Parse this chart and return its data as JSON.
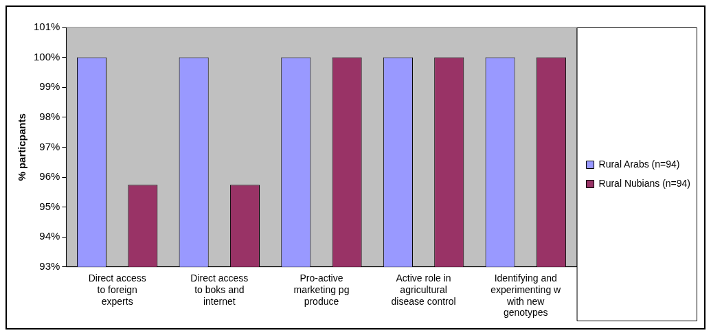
{
  "chart_data": {
    "type": "bar",
    "ylabel": "% particpants",
    "categories": [
      "Direct access to foreign experts",
      "Direct access to boks and internet",
      "Pro-active marketing pg produce",
      "Active role in agricultural disease control",
      "Identifying and experimenting w with new genotypes"
    ],
    "series": [
      {
        "name": "Rural Arabs (n=94)",
        "color": "#9999ff",
        "values": [
          100,
          100,
          100,
          100,
          100
        ]
      },
      {
        "name": "Rural Nubians (n=94)",
        "color": "#993366",
        "values": [
          95.74,
          95.74,
          100,
          100,
          100
        ]
      }
    ],
    "ylim": [
      93,
      101
    ],
    "yticks": [
      {
        "value": 93,
        "label": "93%"
      },
      {
        "value": 94,
        "label": "94%"
      },
      {
        "value": 95,
        "label": "95%"
      },
      {
        "value": 96,
        "label": "96%"
      },
      {
        "value": 97,
        "label": "97%"
      },
      {
        "value": 98,
        "label": "98%"
      },
      {
        "value": 99,
        "label": "99%"
      },
      {
        "value": 100,
        "label": "100%"
      },
      {
        "value": 101,
        "label": "101%"
      }
    ],
    "grid": false,
    "legend": "right"
  }
}
